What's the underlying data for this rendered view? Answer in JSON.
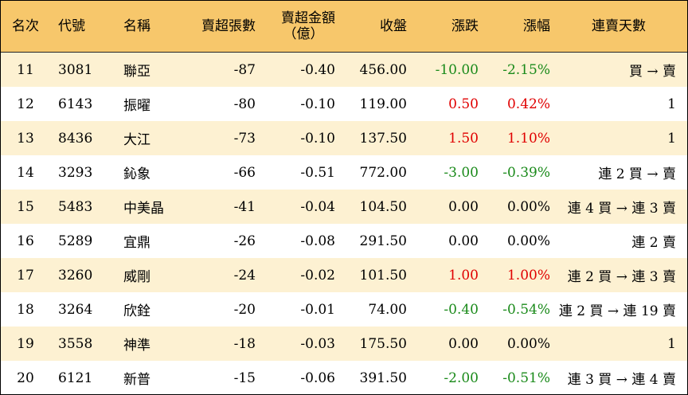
{
  "headers": {
    "rank": "名次",
    "code": "代號",
    "name": "名稱",
    "sell_lots": "賣超張數",
    "sell_amount_line1": "賣超金額",
    "sell_amount_line2": "（億）",
    "close": "收盤",
    "change": "漲跌",
    "pct": "漲幅",
    "streak": "連賣天數"
  },
  "colors": {
    "header_bg": "#f7c76b",
    "stripe": "#fdf1d2",
    "up": "#e00000",
    "down": "#1a8a1a"
  },
  "rows": [
    {
      "rank": "11",
      "code": "3081",
      "name": "聯亞",
      "sell_lots": "-87",
      "sell_amount": "-0.40",
      "close": "456.00",
      "change": "-10.00",
      "pct": "-2.15%",
      "dir": "down",
      "streak": "買 → 賣"
    },
    {
      "rank": "12",
      "code": "6143",
      "name": "振曜",
      "sell_lots": "-80",
      "sell_amount": "-0.10",
      "close": "119.00",
      "change": "0.50",
      "pct": "0.42%",
      "dir": "up",
      "streak": "1"
    },
    {
      "rank": "13",
      "code": "8436",
      "name": "大江",
      "sell_lots": "-73",
      "sell_amount": "-0.10",
      "close": "137.50",
      "change": "1.50",
      "pct": "1.10%",
      "dir": "up",
      "streak": "1"
    },
    {
      "rank": "14",
      "code": "3293",
      "name": "鈊象",
      "sell_lots": "-66",
      "sell_amount": "-0.51",
      "close": "772.00",
      "change": "-3.00",
      "pct": "-0.39%",
      "dir": "down",
      "streak": "連 2 買 → 賣"
    },
    {
      "rank": "15",
      "code": "5483",
      "name": "中美晶",
      "sell_lots": "-41",
      "sell_amount": "-0.04",
      "close": "104.50",
      "change": "0.00",
      "pct": "0.00%",
      "dir": "flat",
      "streak": "連 4 買 → 連 3 賣"
    },
    {
      "rank": "16",
      "code": "5289",
      "name": "宜鼎",
      "sell_lots": "-26",
      "sell_amount": "-0.08",
      "close": "291.50",
      "change": "0.00",
      "pct": "0.00%",
      "dir": "flat",
      "streak": "連 2 賣"
    },
    {
      "rank": "17",
      "code": "3260",
      "name": "威剛",
      "sell_lots": "-24",
      "sell_amount": "-0.02",
      "close": "101.50",
      "change": "1.00",
      "pct": "1.00%",
      "dir": "up",
      "streak": "連 2 買 → 連 3 賣"
    },
    {
      "rank": "18",
      "code": "3264",
      "name": "欣銓",
      "sell_lots": "-20",
      "sell_amount": "-0.01",
      "close": "74.00",
      "change": "-0.40",
      "pct": "-0.54%",
      "dir": "down",
      "streak": "連 2 買 → 連 19 賣"
    },
    {
      "rank": "19",
      "code": "3558",
      "name": "神準",
      "sell_lots": "-18",
      "sell_amount": "-0.03",
      "close": "175.50",
      "change": "0.00",
      "pct": "0.00%",
      "dir": "flat",
      "streak": "1"
    },
    {
      "rank": "20",
      "code": "6121",
      "name": "新普",
      "sell_lots": "-15",
      "sell_amount": "-0.06",
      "close": "391.50",
      "change": "-2.00",
      "pct": "-0.51%",
      "dir": "down",
      "streak": "連 3 買 → 連 4 賣"
    }
  ]
}
